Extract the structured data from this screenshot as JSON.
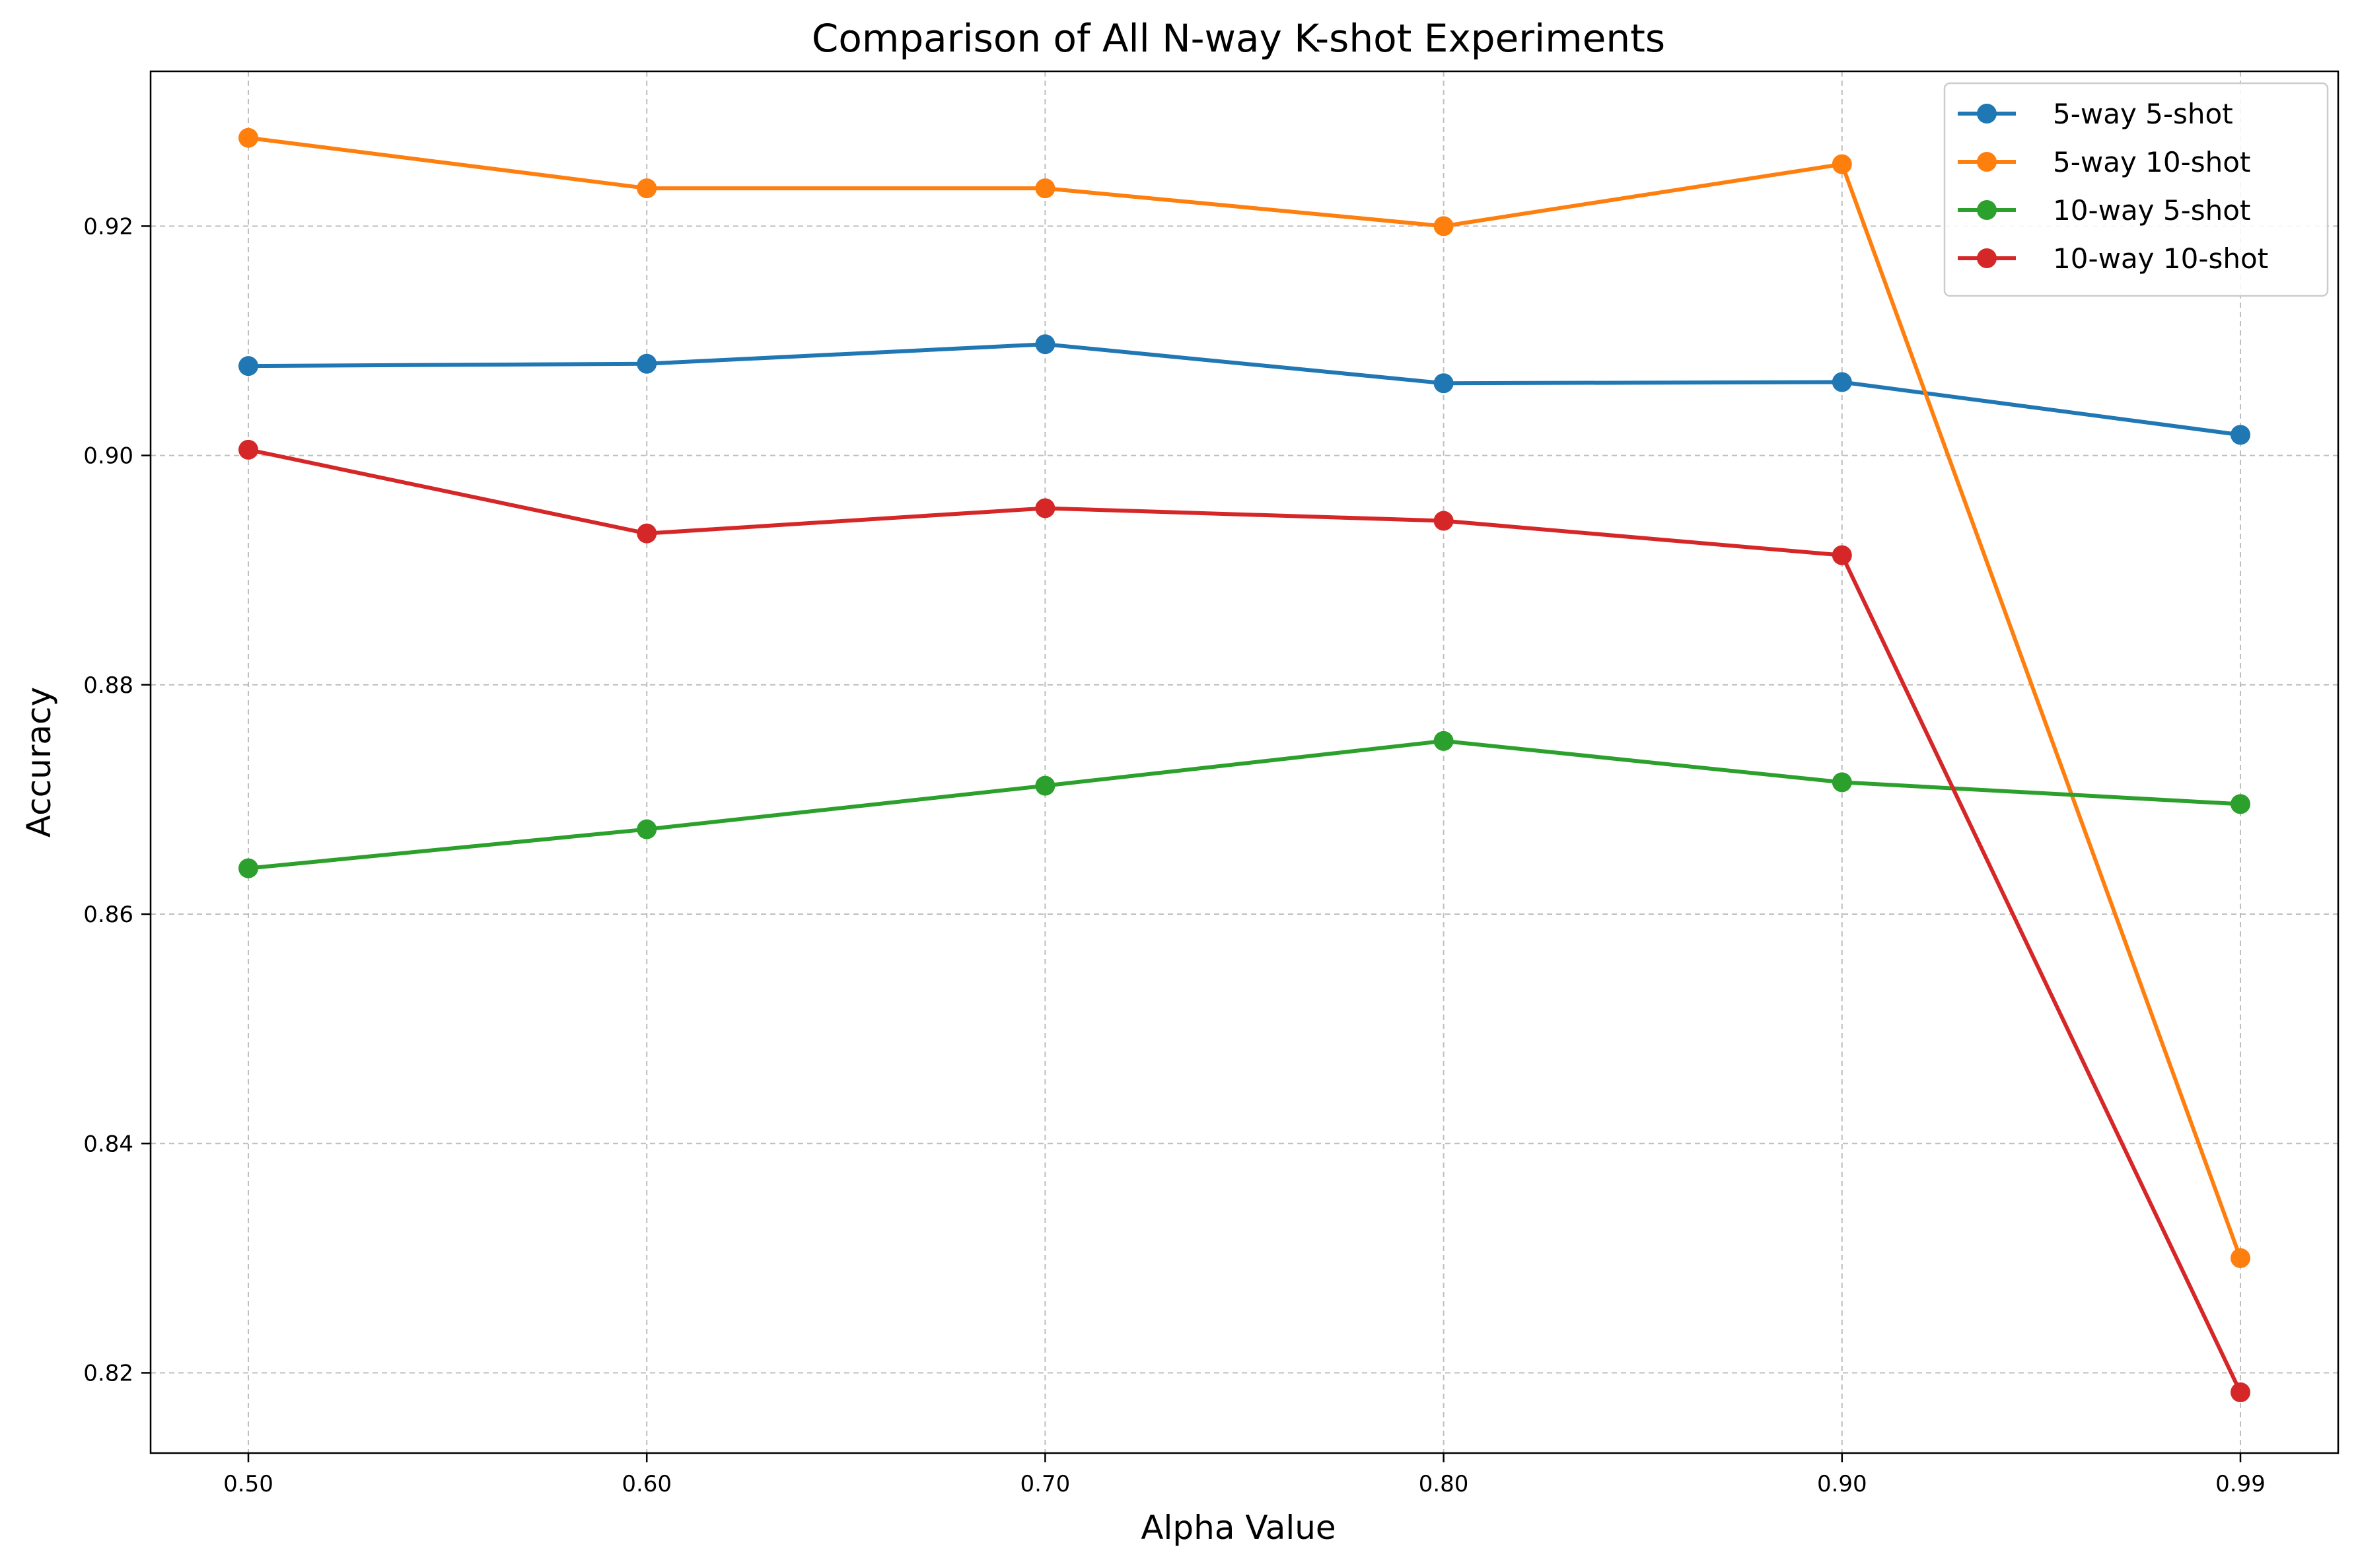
{
  "chart_data": {
    "type": "line",
    "title": "Comparison of All N-way K-shot Experiments",
    "xlabel": "Alpha Value",
    "ylabel": "Accuracy",
    "categories": [
      "0.50",
      "0.60",
      "0.70",
      "0.80",
      "0.90",
      "0.99"
    ],
    "x": [
      0.5,
      0.6,
      0.7,
      0.8,
      0.9,
      0.99
    ],
    "ylim": [
      0.813,
      0.9335
    ],
    "yticks": [
      0.82,
      0.84,
      0.86,
      0.88,
      0.9,
      0.92
    ],
    "ytick_labels": [
      "0.82",
      "0.84",
      "0.86",
      "0.88",
      "0.90",
      "0.92"
    ],
    "grid": true,
    "legend_position": "top-right",
    "series": [
      {
        "name": "5-way 5-shot",
        "color": "#1f77b4",
        "values": [
          0.9078,
          0.908,
          0.9097,
          0.9063,
          0.9064,
          0.9018
        ]
      },
      {
        "name": "5-way 10-shot",
        "color": "#ff7f0e",
        "values": [
          0.9277,
          0.9233,
          0.9233,
          0.92,
          0.9254,
          0.83
        ]
      },
      {
        "name": "10-way 5-shot",
        "color": "#2ca02c",
        "values": [
          0.864,
          0.8674,
          0.8712,
          0.8751,
          0.8715,
          0.8696
        ]
      },
      {
        "name": "10-way 10-shot",
        "color": "#d62728",
        "values": [
          0.9005,
          0.8932,
          0.8954,
          0.8943,
          0.8913,
          0.8183
        ]
      }
    ]
  }
}
